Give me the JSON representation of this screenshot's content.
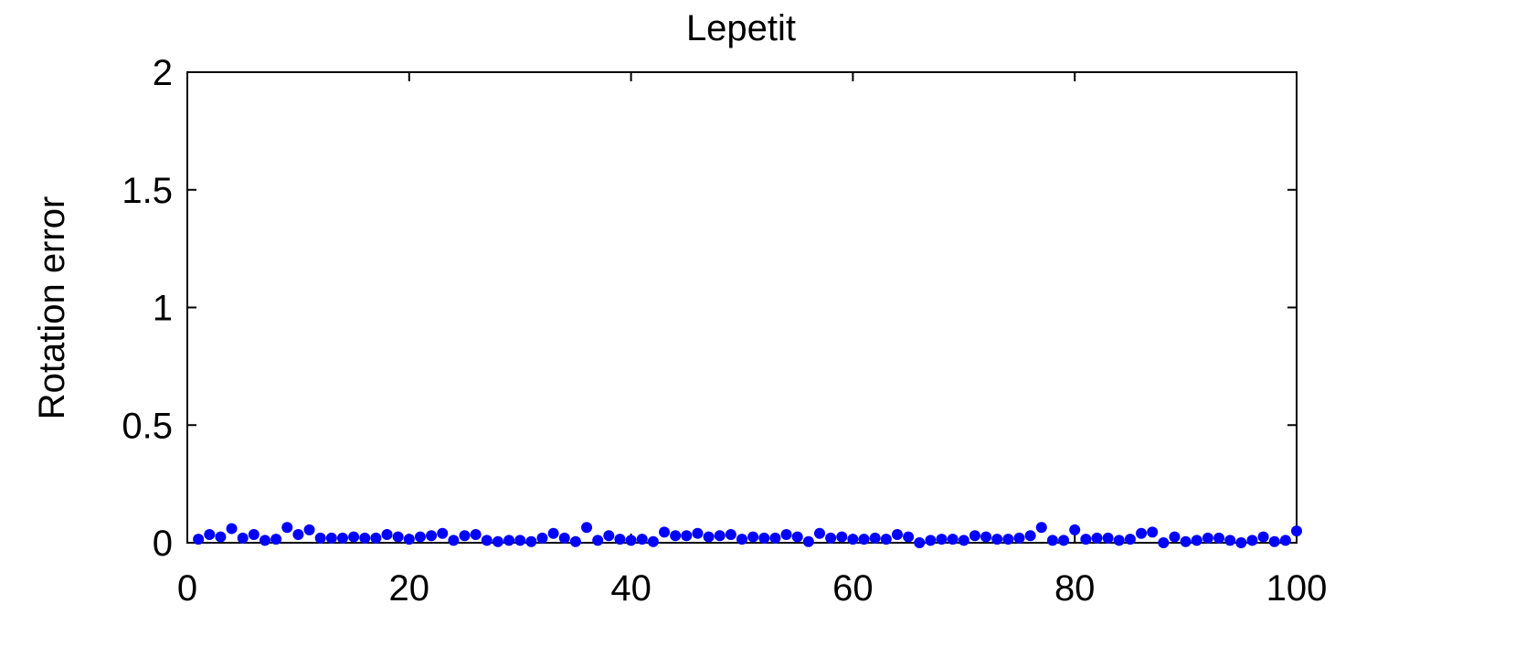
{
  "chart_data": {
    "type": "scatter",
    "title": "Lepetit",
    "xlabel": "",
    "ylabel": "Rotation error",
    "xlim": [
      0,
      100
    ],
    "ylim": [
      0,
      2
    ],
    "xticks": [
      0,
      20,
      40,
      60,
      80,
      100
    ],
    "yticks": [
      0,
      0.5,
      1,
      1.5,
      2
    ],
    "ytick_labels": [
      "0",
      "0.5",
      "1",
      "1.5",
      "2"
    ],
    "xtick_labels": [
      "0",
      "20",
      "40",
      "60",
      "80",
      "100"
    ],
    "grid": false,
    "marker_color": "#0000ff",
    "series": [
      {
        "x": [
          1,
          2,
          3,
          4,
          5,
          6,
          7,
          8,
          9,
          10,
          11,
          12,
          13,
          14,
          15,
          16,
          17,
          18,
          19,
          20,
          21,
          22,
          23,
          24,
          25,
          26,
          27,
          28,
          29,
          30,
          31,
          32,
          33,
          34,
          35,
          36,
          37,
          38,
          39,
          40,
          41,
          42,
          43,
          44,
          45,
          46,
          47,
          48,
          49,
          50,
          51,
          52,
          53,
          54,
          55,
          56,
          57,
          58,
          59,
          60,
          61,
          62,
          63,
          64,
          65,
          66,
          67,
          68,
          69,
          70,
          71,
          72,
          73,
          74,
          75,
          76,
          77,
          78,
          79,
          80,
          81,
          82,
          83,
          84,
          85,
          86,
          87,
          88,
          89,
          90,
          91,
          92,
          93,
          94,
          95,
          96,
          97,
          98,
          99,
          100
        ],
        "y": [
          0.015,
          0.035,
          0.025,
          0.06,
          0.02,
          0.035,
          0.01,
          0.015,
          0.065,
          0.035,
          0.055,
          0.02,
          0.02,
          0.02,
          0.025,
          0.02,
          0.02,
          0.035,
          0.025,
          0.015,
          0.025,
          0.03,
          0.04,
          0.01,
          0.03,
          0.035,
          0.01,
          0.005,
          0.01,
          0.01,
          0.005,
          0.02,
          0.04,
          0.02,
          0.005,
          0.065,
          0.01,
          0.03,
          0.015,
          0.01,
          0.015,
          0.005,
          0.045,
          0.03,
          0.03,
          0.04,
          0.025,
          0.03,
          0.035,
          0.015,
          0.025,
          0.02,
          0.02,
          0.035,
          0.025,
          0.005,
          0.04,
          0.02,
          0.025,
          0.015,
          0.015,
          0.02,
          0.015,
          0.035,
          0.025,
          0.0,
          0.01,
          0.015,
          0.015,
          0.01,
          0.03,
          0.025,
          0.015,
          0.015,
          0.02,
          0.03,
          0.065,
          0.01,
          0.01,
          0.055,
          0.015,
          0.02,
          0.02,
          0.01,
          0.015,
          0.04,
          0.045,
          0.0,
          0.025,
          0.005,
          0.01,
          0.02,
          0.02,
          0.01,
          0.0,
          0.01,
          0.025,
          0.005,
          0.01,
          0.05
        ]
      }
    ]
  }
}
